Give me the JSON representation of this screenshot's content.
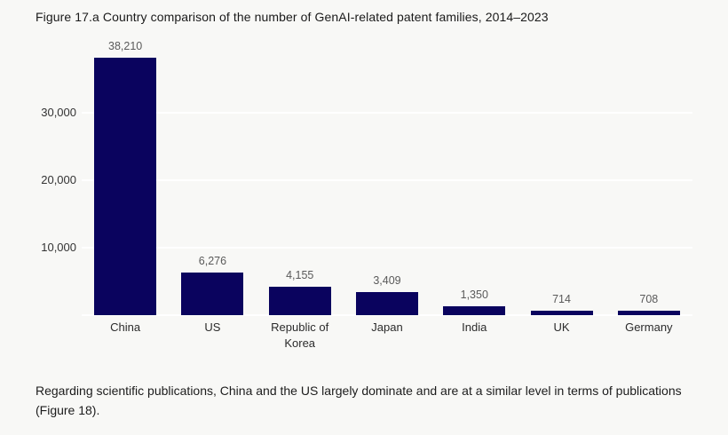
{
  "figure": {
    "title": "Figure 17.a Country comparison of the number of GenAI-related patent families, 2014–2023",
    "caption": "Regarding scientific publications, China and the US largely dominate and are at a similar level in terms of publications (Figure 18)."
  },
  "chart_data": {
    "type": "bar",
    "title": "Figure 17.a Country comparison of the number of GenAI-related patent families, 2014–2023",
    "categories": [
      "China",
      "US",
      "Republic of Korea",
      "Japan",
      "India",
      "UK",
      "Germany"
    ],
    "values": [
      38210,
      6276,
      4155,
      3409,
      1350,
      714,
      708
    ],
    "value_labels": [
      "38,210",
      "6,276",
      "4,155",
      "3,409",
      "1,350",
      "714",
      "708"
    ],
    "xlabel": "",
    "ylabel": "",
    "ylim": [
      0,
      39500
    ],
    "yticks": [
      10000,
      20000,
      30000
    ],
    "ytick_labels": [
      "10,000",
      "20,000",
      "30,000"
    ],
    "grid": true,
    "legend": "none",
    "bar_color": "#0a035e",
    "background_color": "#f8f8f6",
    "gridline_color": "#ffffff",
    "value_label_color": "#5a5a5a",
    "axis_label_color": "#2b2b2b"
  }
}
